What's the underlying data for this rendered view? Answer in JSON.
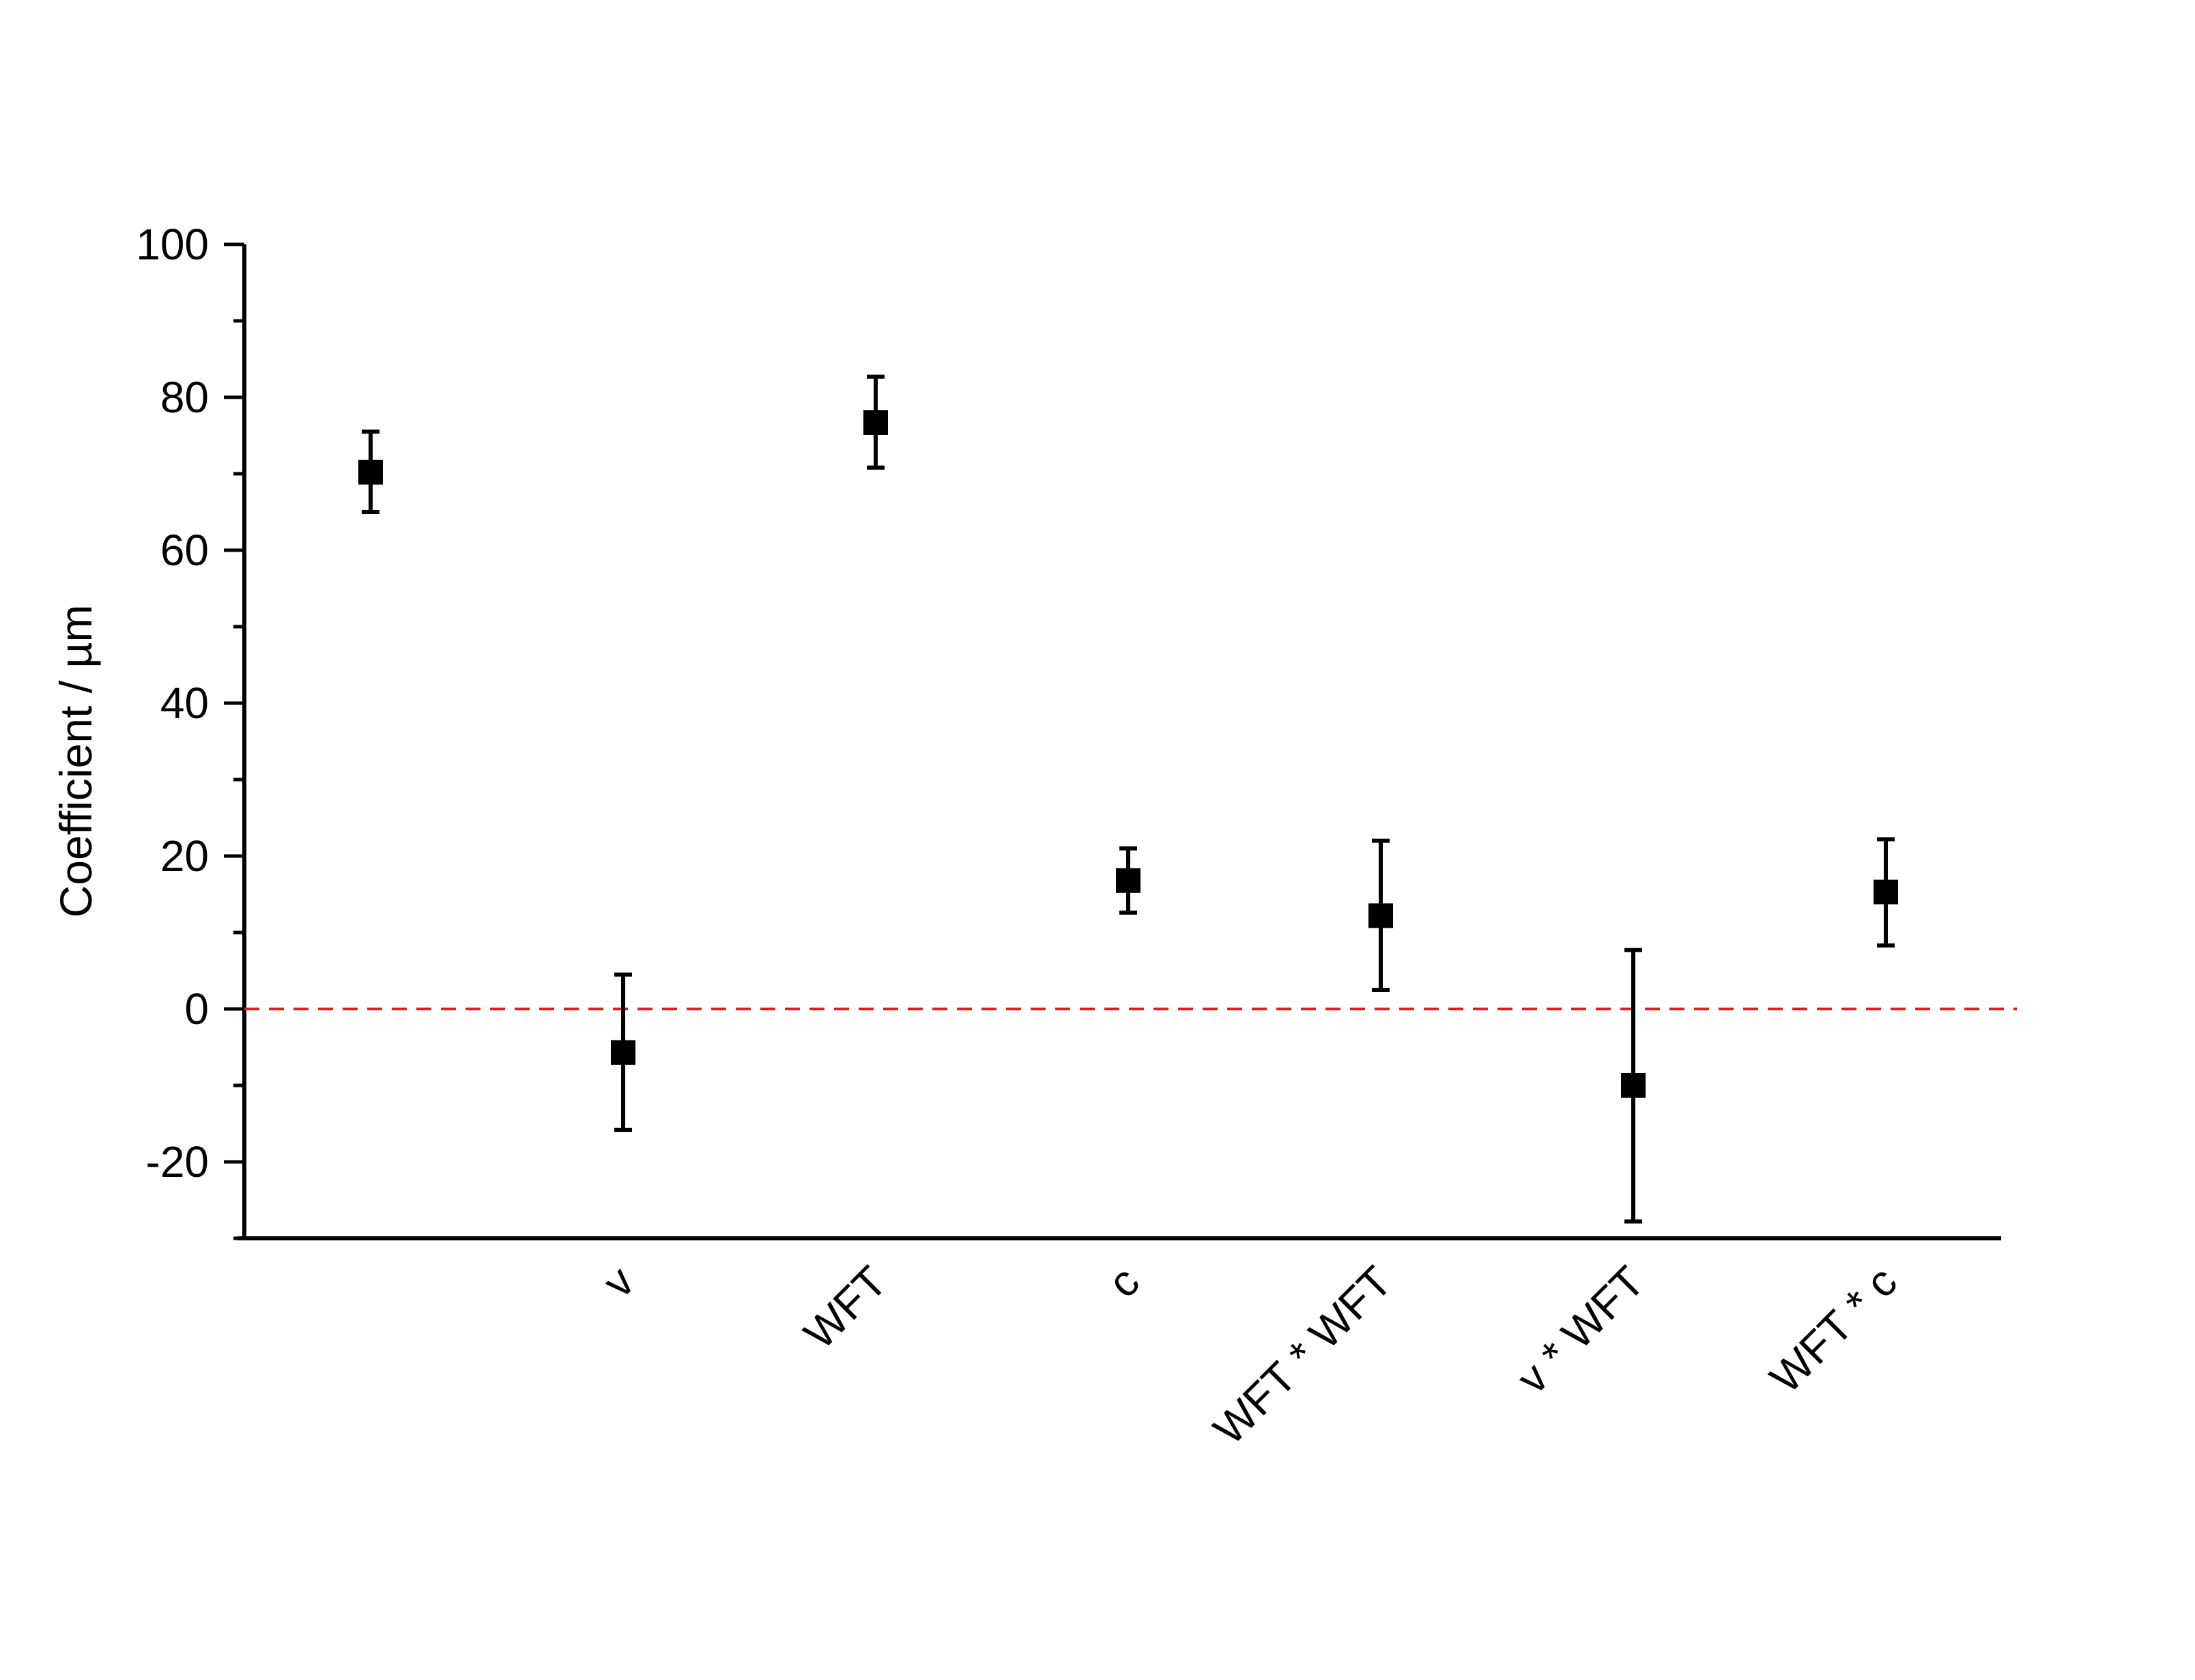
{
  "chart_data": {
    "type": "scatter",
    "title": "",
    "xlabel": "",
    "ylabel": "Coefficient / µm",
    "ylim": [
      -30,
      100
    ],
    "yticks": [
      -20,
      0,
      20,
      40,
      60,
      80,
      100
    ],
    "ytick_labels": [
      "-20",
      "0",
      "20",
      "40",
      "60",
      "80",
      "100"
    ],
    "grid": false,
    "legend": "none",
    "reference_line": {
      "y": 0,
      "style": "dashed",
      "color": "#e41a1c"
    },
    "marker": {
      "shape": "square",
      "color": "#000000"
    },
    "categories": [
      "",
      "v",
      "WFT",
      "c",
      "WFT * WFT",
      "v * WFT",
      "WFT * c"
    ],
    "values": [
      70.2,
      -5.7,
      76.7,
      16.8,
      12.2,
      -10,
      15.3
    ],
    "error_low": [
      65.0,
      -15.8,
      70.8,
      12.6,
      2.5,
      -27.8,
      8.3
    ],
    "error_high": [
      75.5,
      4.5,
      82.7,
      21.0,
      22.0,
      7.7,
      22.2
    ]
  }
}
